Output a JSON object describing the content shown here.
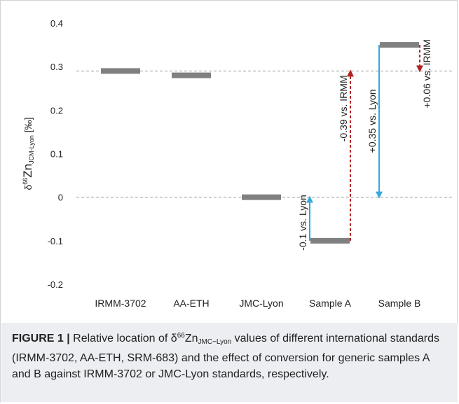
{
  "chart_data": {
    "type": "floating-bar",
    "ylabel_parts": {
      "prefix": "δ",
      "sup": "66",
      "element": "Zn",
      "sub": "JCM-Lyon",
      "unit": " [‰]"
    },
    "ylim": [
      -0.2,
      0.4
    ],
    "yticks": [
      -0.2,
      -0.1,
      0,
      0.1,
      0.2,
      0.3,
      0.4
    ],
    "ytick_labels": [
      "-0.2",
      "-0.1",
      "0",
      "0.1",
      "0.2",
      "0.3",
      "0.4"
    ],
    "categories": [
      "IRMM-3702",
      "AA-ETH",
      "JMC-Lyon",
      "Sample A",
      "Sample B"
    ],
    "values": [
      0.29,
      0.28,
      0.0,
      -0.1,
      0.35
    ],
    "bar_color": "#808080",
    "reference_lines": [
      0.29,
      0.0
    ],
    "reference_line_color": "#999999",
    "annotations": [
      {
        "text": "-0.1 vs. Lyon",
        "from": -0.1,
        "to": 0.0,
        "category": "Sample A",
        "side": "left",
        "color": "#35a9dd",
        "style": "solid"
      },
      {
        "text": "-0.39 vs. IRMM",
        "from": -0.1,
        "to": 0.29,
        "category": "Sample A",
        "side": "right",
        "color": "#b22222",
        "style": "dashed"
      },
      {
        "text": "+0.35 vs. Lyon",
        "from": 0.35,
        "to": 0.0,
        "category": "Sample B",
        "side": "left",
        "color": "#35a9dd",
        "style": "solid"
      },
      {
        "text": "+0.06 vs. IRMM",
        "from": 0.35,
        "to": 0.29,
        "category": "Sample B",
        "side": "right",
        "color": "#b22222",
        "style": "dashed"
      }
    ]
  },
  "caption": {
    "label": "FIGURE 1",
    "separator": " | ",
    "part1": "Relative location of δ",
    "sup": "66",
    "part2": "Zn",
    "sub": "JMC−Lyon",
    "part3": " values of different international standards (IRMM-3702, AA-ETH, SRM-683) and the effect of conversion for generic samples A and B against IRMM-3702 or JMC-Lyon standards, respectively."
  }
}
